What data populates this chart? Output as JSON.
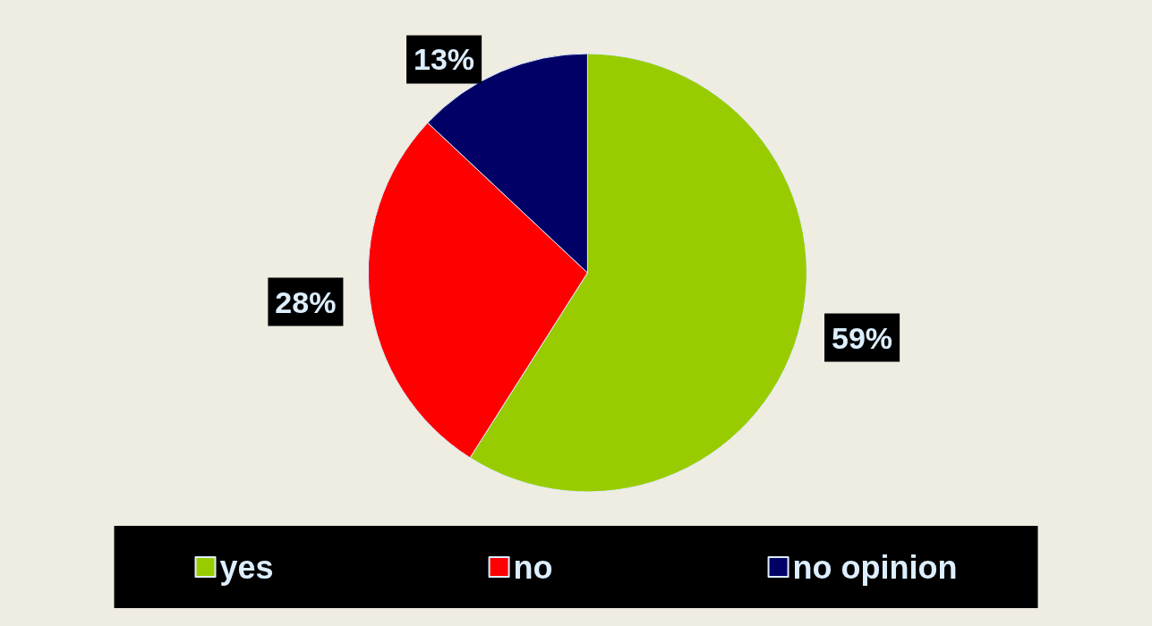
{
  "chart_data": {
    "type": "pie",
    "categories": [
      "yes",
      "no",
      "no opinion"
    ],
    "values": [
      59,
      28,
      13
    ],
    "colors": [
      "#99cc00",
      "#ff0000",
      "#000066"
    ],
    "value_labels": [
      "59%",
      "28%",
      "13%"
    ],
    "legend": "bottom"
  }
}
